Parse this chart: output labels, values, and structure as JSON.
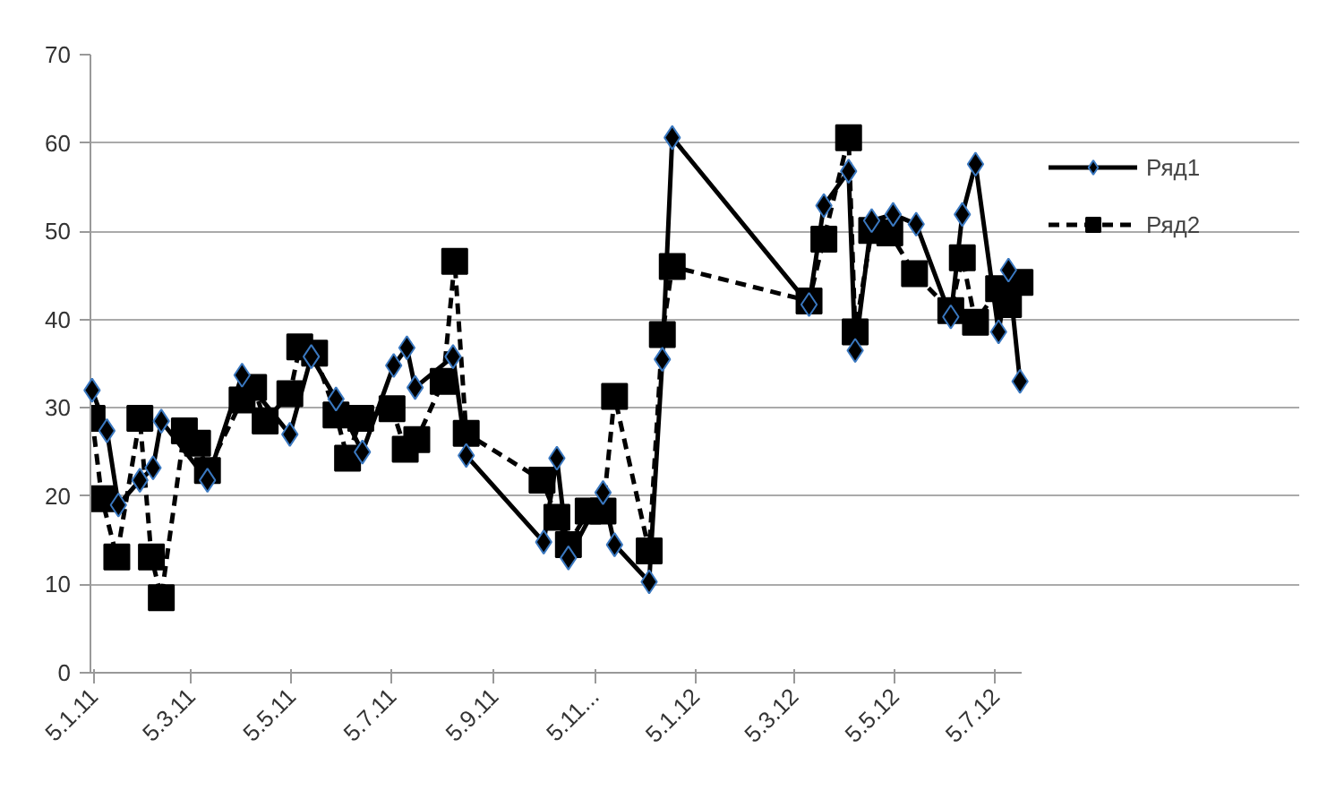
{
  "chart_data": {
    "type": "line",
    "xlim": [
      "2011-01-03",
      "2012-07-21"
    ],
    "ylim": [
      0,
      70
    ],
    "yticks": [
      0,
      10,
      20,
      30,
      40,
      50,
      60,
      70
    ],
    "xticks": [
      {
        "value": "2011-01-05",
        "label": "5.1.11"
      },
      {
        "value": "2011-03-05",
        "label": "5.3.11"
      },
      {
        "value": "2011-05-05",
        "label": "5.5.11"
      },
      {
        "value": "2011-07-05",
        "label": "5.7.11"
      },
      {
        "value": "2011-09-05",
        "label": "5.9.11"
      },
      {
        "value": "2011-11-05",
        "label": "5.11..."
      },
      {
        "value": "2012-01-05",
        "label": "5.1.12"
      },
      {
        "value": "2012-03-05",
        "label": "5.3.12"
      },
      {
        "value": "2012-05-05",
        "label": "5.5.12"
      },
      {
        "value": "2012-07-05",
        "label": "5.7.12"
      }
    ],
    "grid": "y",
    "legend": "right",
    "series": [
      {
        "name": "Ряд1",
        "color": "#000000",
        "marker": "diamond",
        "line_style": "solid",
        "x": [
          "2011-01-04",
          "2011-01-13",
          "2011-01-20",
          "2011-02-02",
          "2011-02-10",
          "2011-02-15",
          "2011-03-15",
          "2011-04-05",
          "2011-05-04",
          "2011-05-17",
          "2011-06-01",
          "2011-06-17",
          "2011-07-06",
          "2011-07-14",
          "2011-07-19",
          "2011-08-11",
          "2011-08-19",
          "2011-10-05",
          "2011-10-13",
          "2011-10-20",
          "2011-11-10",
          "2011-11-17",
          "2011-12-08",
          "2011-12-16",
          "2011-12-22",
          "2012-03-14",
          "2012-03-23",
          "2012-04-07",
          "2012-04-11",
          "2012-04-21",
          "2012-05-04",
          "2012-05-18",
          "2012-06-08",
          "2012-06-15",
          "2012-06-23",
          "2012-07-07",
          "2012-07-13",
          "2012-07-20"
        ],
        "values": [
          32,
          27.4,
          19,
          21.8,
          23.2,
          28.5,
          21.8,
          33.7,
          27,
          35.8,
          31,
          25,
          34.8,
          36.8,
          32.3,
          35.8,
          24.6,
          14.8,
          24.3,
          13,
          20.4,
          14.5,
          10.3,
          35.5,
          60.6,
          41.7,
          52.9,
          56.8,
          36.5,
          51.2,
          51.9,
          50.8,
          40.3,
          51.9,
          57.6,
          38.6,
          45.6,
          33
        ]
      },
      {
        "name": "Ряд2",
        "color": "#000000",
        "marker": "square",
        "line_style": "dashed",
        "x": [
          "2011-01-04",
          "2011-01-10",
          "2011-01-19",
          "2011-02-02",
          "2011-02-09",
          "2011-02-15",
          "2011-03-01",
          "2011-03-09",
          "2011-03-15",
          "2011-04-05",
          "2011-04-12",
          "2011-04-19",
          "2011-05-04",
          "2011-05-10",
          "2011-05-19",
          "2011-06-01",
          "2011-06-08",
          "2011-06-16",
          "2011-07-05",
          "2011-07-13",
          "2011-07-20",
          "2011-08-05",
          "2011-08-12",
          "2011-08-19",
          "2011-10-04",
          "2011-10-13",
          "2011-10-20",
          "2011-11-01",
          "2011-11-10",
          "2011-11-17",
          "2011-12-08",
          "2011-12-16",
          "2011-12-22",
          "2012-03-14",
          "2012-03-23",
          "2012-04-07",
          "2012-04-11",
          "2012-04-21",
          "2012-05-02",
          "2012-05-17",
          "2012-06-08",
          "2012-06-15",
          "2012-06-23",
          "2012-07-07",
          "2012-07-13",
          "2012-07-20"
        ],
        "values": [
          28.8,
          19.7,
          13.1,
          28.8,
          13.1,
          8.5,
          27.4,
          26,
          22.9,
          30.9,
          32.3,
          28.5,
          31.6,
          36.9,
          36.2,
          29.2,
          24.3,
          28.8,
          29.9,
          25.3,
          26.4,
          33,
          46.6,
          27.1,
          21.8,
          17.6,
          14.5,
          18.3,
          18.3,
          31.3,
          13.8,
          38.3,
          46,
          42.1,
          49.1,
          60.6,
          38.6,
          50.1,
          49.8,
          45.2,
          41,
          47,
          39.7,
          43.5,
          41.7,
          44.2
        ]
      }
    ]
  }
}
